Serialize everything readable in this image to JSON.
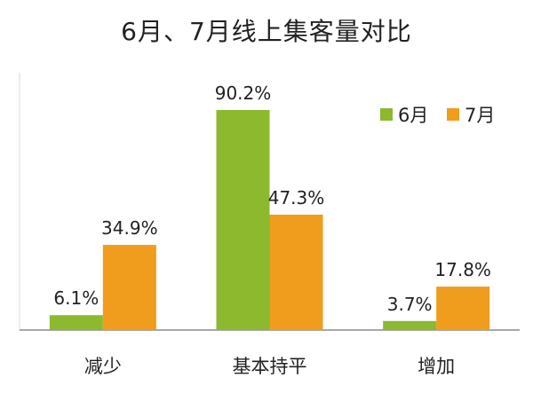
{
  "chart_data": {
    "type": "bar",
    "title": "6月、7月线上集客量对比",
    "categories": [
      "减少",
      "基本持平",
      "增加"
    ],
    "series": [
      {
        "name": "6月",
        "values": [
          6.1,
          90.2,
          3.7
        ],
        "labels": [
          "6.1%",
          "90.2%",
          "3.7%"
        ],
        "color": "#8cb92e"
      },
      {
        "name": "7月",
        "values": [
          34.9,
          47.3,
          17.8
        ],
        "labels": [
          "34.9%",
          "47.3%",
          "17.8%"
        ],
        "color": "#f09c1c"
      }
    ],
    "xlabel": "",
    "ylabel": "",
    "ylim": [
      0,
      100
    ],
    "grid": false,
    "legend": "top-right"
  }
}
